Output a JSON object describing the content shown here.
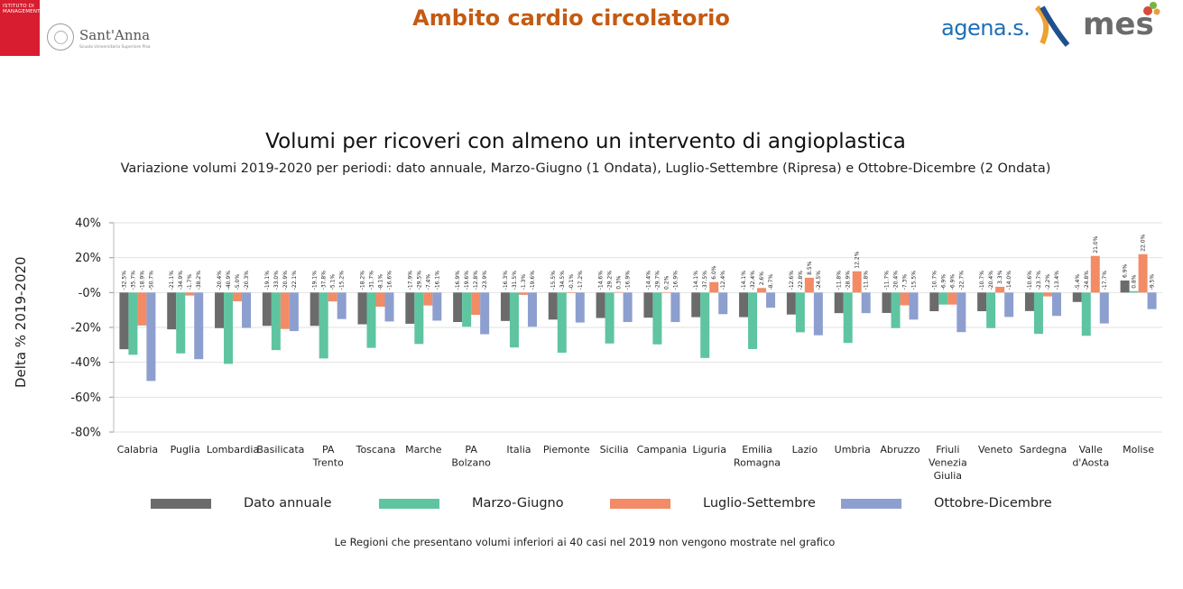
{
  "header": {
    "institute_text": "ISTITUTO DI MANAGEMENT",
    "santanna_name": "Sant'Anna",
    "santanna_sub": "Scuola Universitaria Superiore Pisa",
    "title": "Ambito cardio circolatorio",
    "agenas_logo": "agenas",
    "mes_logo": "mes",
    "title_color": "#c55a11"
  },
  "chart_data": {
    "type": "bar",
    "title": "Volumi per ricoveri con almeno un intervento di angioplastica",
    "subtitle": "Variazione volumi 2019-2020 per periodi: dato annuale, Marzo-Giugno (1 Ondata), Luglio-Settembre (Ripresa) e Ottobre-Dicembre (2 Ondata)",
    "ylabel": "Delta % 2019-2020",
    "ylim": [
      -80,
      40
    ],
    "yticks": [
      40,
      20,
      0,
      -20,
      -40,
      -60,
      -80
    ],
    "ytick_labels": [
      "40%",
      "20%",
      "-0%",
      "-20%",
      "-40%",
      "-60%",
      "-80%"
    ],
    "grid": true,
    "legend_position": "bottom",
    "categories": [
      [
        "Calabria"
      ],
      [
        "Puglia"
      ],
      [
        "Lombardia"
      ],
      [
        "Basilicata"
      ],
      [
        "PA",
        "Trento"
      ],
      [
        "Toscana"
      ],
      [
        "Marche"
      ],
      [
        "PA",
        "Bolzano"
      ],
      [
        "Italia"
      ],
      [
        "Piemonte"
      ],
      [
        "Sicilia"
      ],
      [
        "Campania"
      ],
      [
        "Liguria"
      ],
      [
        "Emilia",
        "Romagna"
      ],
      [
        "Lazio"
      ],
      [
        "Umbria"
      ],
      [
        "Abruzzo"
      ],
      [
        "Friuli",
        "Venezia",
        "Giulia"
      ],
      [
        "Veneto"
      ],
      [
        "Sardegna"
      ],
      [
        "Valle",
        "d'Aosta"
      ],
      [
        "Molise"
      ]
    ],
    "series": [
      {
        "name": "Dato annuale",
        "color": "#6b6b6b",
        "values": [
          -32.5,
          -21.1,
          -20.4,
          -19.1,
          -19.1,
          -18.2,
          -17.9,
          -16.9,
          -16.3,
          -15.5,
          -14.6,
          -14.4,
          -14.1,
          -14.1,
          -12.6,
          -11.8,
          -11.7,
          -10.7,
          -10.7,
          -10.6,
          -5.4,
          6.9
        ],
        "labels": [
          "-32.5%",
          "-21.1%",
          "-20.4%",
          "-19.1%",
          "-19.1%",
          "-18.2%",
          "-17.9%",
          "-16.9%",
          "-16.3%",
          "-15.5%",
          "-14.6%",
          "-14.4%",
          "-14.1%",
          "-14.1%",
          "-12.6%",
          "-11.8%",
          "-11.7%",
          "-10.7%",
          "-10.7%",
          "-10.6%",
          "-5.4%",
          "6.9%"
        ]
      },
      {
        "name": "Marzo-Giugno",
        "color": "#5fc4a0",
        "values": [
          -35.7,
          -34.9,
          -40.9,
          -33.0,
          -37.8,
          -31.7,
          -29.5,
          -19.6,
          -31.5,
          -34.5,
          -29.2,
          -29.7,
          -37.5,
          -32.4,
          -22.8,
          -28.9,
          -20.4,
          -6.9,
          -20.4,
          -23.7,
          -24.8,
          0.8
        ],
        "labels": [
          "-35.7%",
          "-34.9%",
          "-40.9%",
          "-33.0%",
          "-37.8%",
          "-31.7%",
          "-29.5%",
          "-19.6%",
          "-31.5%",
          "-34.5%",
          "-29.2%",
          "-29.7%",
          "-37.5%",
          "-32.4%",
          "-22.8%",
          "-28.9%",
          "-20.4%",
          "-6.9%",
          "-20.4%",
          "-23.7%",
          "-24.8%",
          "0.8%"
        ]
      },
      {
        "name": "Luglio-Settembre",
        "color": "#f28b66",
        "values": [
          -18.9,
          -1.7,
          -5.0,
          -20.9,
          -5.1,
          -8.1,
          -7.4,
          -12.8,
          -1.3,
          -0.1,
          0.3,
          0.2,
          6.0,
          2.6,
          8.5,
          12.2,
          -7.3,
          -6.9,
          3.3,
          -2.2,
          21.0,
          22.0
        ],
        "labels": [
          "-18.9%",
          "-1.7%",
          "-5.0%",
          "-20.9%",
          "-5.1%",
          "-8.1%",
          "-7.4%",
          "-12.8%",
          "-1.3%",
          "-0.1%",
          "0.3%",
          "0.2%",
          "6.0%",
          "2.6%",
          "8.5%",
          "12.2%",
          "-7.3%",
          "-6.9%",
          "3.3%",
          "-2.2%",
          "21.0%",
          "22.0%"
        ]
      },
      {
        "name": "Ottobre-Dicembre",
        "color": "#8d9fcf",
        "values": [
          -50.7,
          -38.2,
          -20.3,
          -22.1,
          -15.2,
          -16.6,
          -16.1,
          -23.9,
          -19.6,
          -17.2,
          -16.9,
          -16.9,
          -12.4,
          -8.7,
          -24.5,
          -11.8,
          -15.5,
          -22.7,
          -14.0,
          -13.4,
          -17.7,
          -9.5
        ],
        "labels": [
          "-50.7%",
          "-38.2%",
          "-20.3%",
          "-22.1%",
          "-15.2%",
          "-16.6%",
          "-16.1%",
          "-23.9%",
          "-19.6%",
          "-17.2%",
          "-16.9%",
          "-16.9%",
          "-12.4%",
          "-8.7%",
          "-24.5%",
          "-11.8%",
          "-15.5%",
          "-22.7%",
          "-14.0%",
          "-13.4%",
          "-17.7%",
          "-9.5%"
        ]
      }
    ]
  },
  "footnote": "Le Regioni che presentano volumi inferiori ai 40 casi nel 2019 non vengono mostrate nel grafico"
}
